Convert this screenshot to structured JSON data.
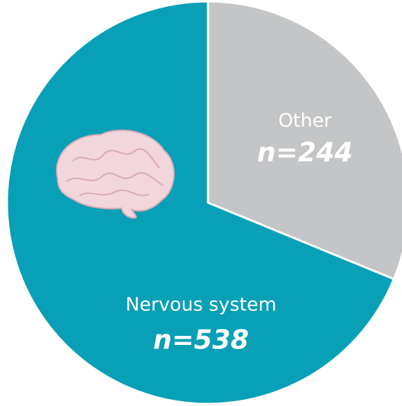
{
  "chart_data": {
    "type": "pie",
    "categories": [
      "Other",
      "Nervous system"
    ],
    "values": [
      244,
      538
    ],
    "value_labels": [
      "n=244",
      "n=538"
    ],
    "colors": [
      "#c3c5c7",
      "#08a0b6"
    ]
  }
}
